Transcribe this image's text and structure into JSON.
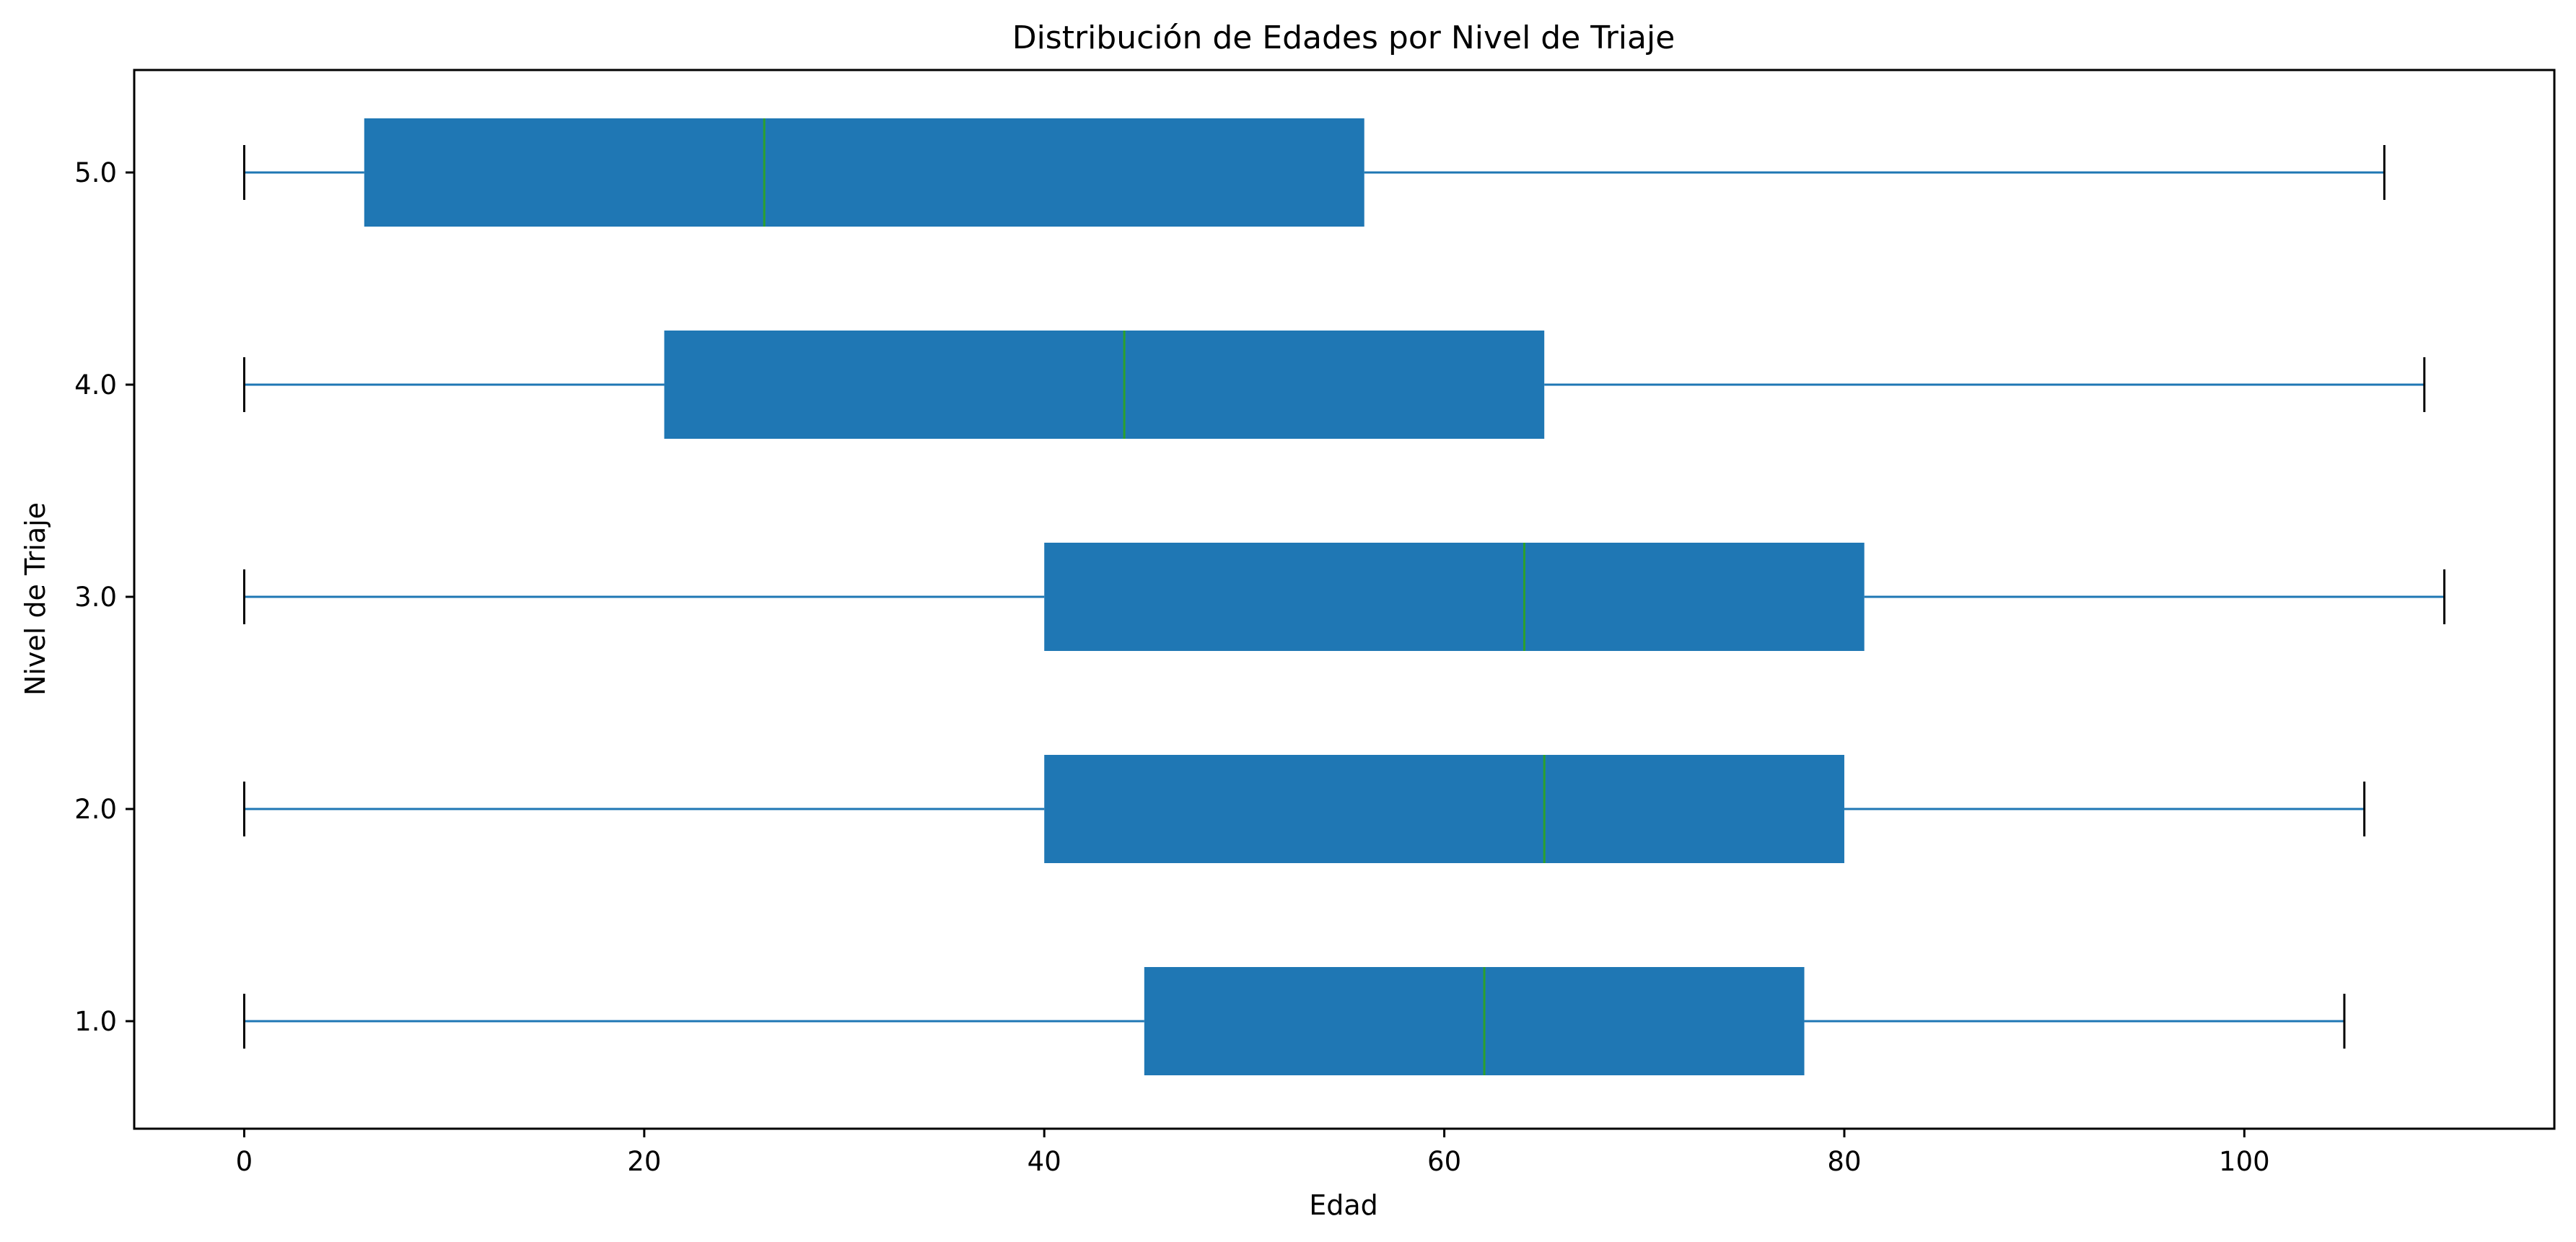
{
  "chart_data": {
    "type": "boxplot",
    "orientation": "horizontal",
    "title": "Distribución de Edades por Nivel de Triaje",
    "xlabel": "Edad",
    "ylabel": "Nivel de Triaje",
    "xlim": [
      -5.5,
      115.5
    ],
    "xticks": [
      0,
      20,
      40,
      60,
      80,
      100
    ],
    "grid": false,
    "legend": "none",
    "categories": [
      "1.0",
      "2.0",
      "3.0",
      "4.0",
      "5.0"
    ],
    "boxes": [
      {
        "label": "1.0",
        "whisker_low": 0,
        "q1": 45,
        "median": 62,
        "q3": 78,
        "whisker_high": 105
      },
      {
        "label": "2.0",
        "whisker_low": 0,
        "q1": 40,
        "median": 65,
        "q3": 80,
        "whisker_high": 106
      },
      {
        "label": "3.0",
        "whisker_low": 0,
        "q1": 40,
        "median": 64,
        "q3": 81,
        "whisker_high": 110
      },
      {
        "label": "4.0",
        "whisker_low": 0,
        "q1": 21,
        "median": 44,
        "q3": 65,
        "whisker_high": 109
      },
      {
        "label": "5.0",
        "whisker_low": 0,
        "q1": 6,
        "median": 26,
        "q3": 56,
        "whisker_high": 107
      }
    ],
    "colors": {
      "box_fill": "#1f77b4",
      "whisker": "#1f77b4",
      "median": "#2ca02c",
      "cap": "#000000"
    }
  }
}
